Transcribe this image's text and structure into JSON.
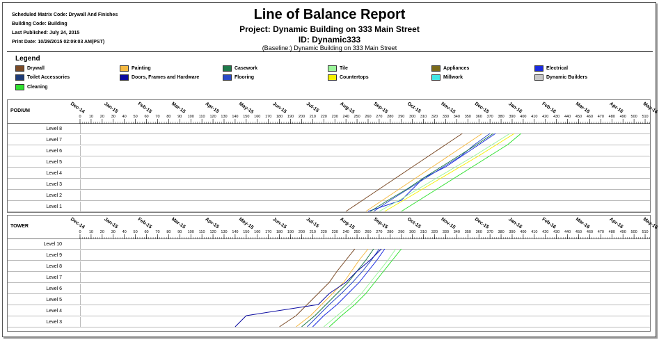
{
  "header": {
    "meta": [
      "Scheduled Matrix Code: Drywall And Finishes",
      "Building Code:  Building",
      "Last Published: July 24, 2015",
      "Print Date:  10/29/2015 02:09:03 AM(PST)"
    ],
    "title": "Line of Balance Report",
    "project": "Project: Dynamic Building on 333 Main Street",
    "id": "ID: Dynamic333",
    "baseline": "(Baseline:) Dynamic Building on 333 Main Street"
  },
  "legend": {
    "title": "Legend",
    "items": [
      {
        "label": "Drywall",
        "color": "#7a4a26"
      },
      {
        "label": "Painting",
        "color": "#f5b942"
      },
      {
        "label": "Casework",
        "color": "#1e7a4a"
      },
      {
        "label": "Tile",
        "color": "#9af59a"
      },
      {
        "label": "Appliances",
        "color": "#7a6a1a"
      },
      {
        "label": "Electrical",
        "color": "#1a2ae0"
      },
      {
        "label": "Toilet Accessories",
        "color": "#1e3c78"
      },
      {
        "label": "Doors, Frames and Hardware",
        "color": "#0a0aa0"
      },
      {
        "label": "Flooring",
        "color": "#2a4ac8"
      },
      {
        "label": "Countertops",
        "color": "#f5f000"
      },
      {
        "label": "Millwork",
        "color": "#40e6e6"
      },
      {
        "label": "Dynamic Builders",
        "color": "#c8c8c8"
      },
      {
        "label": "Cleaning",
        "color": "#30e030"
      }
    ]
  },
  "axis": {
    "months": [
      "Dec-14",
      "Jan-15",
      "Feb-15",
      "Mar-15",
      "Apr-15",
      "May-15",
      "Jun-15",
      "Jul-15",
      "Aug-15",
      "Sep-15",
      "Oct-15",
      "Nov-15",
      "Dec-15",
      "Jan-16",
      "Feb-16",
      "Mar-16",
      "Apr-16",
      "May-16"
    ],
    "day_ticks": [
      0,
      10,
      20,
      30,
      40,
      50,
      60,
      70,
      80,
      90,
      100,
      110,
      120,
      130,
      140,
      150,
      160,
      170,
      180,
      190,
      200,
      210,
      220,
      230,
      240,
      250,
      260,
      270,
      280,
      290,
      300,
      310,
      320,
      330,
      340,
      350,
      360,
      370,
      380,
      390,
      400,
      410,
      420,
      430,
      440,
      450,
      460,
      470,
      480,
      490,
      500,
      510
    ],
    "day_max": 515
  },
  "panels": [
    {
      "label": "PODIUM",
      "levels": [
        "Level 8",
        "Level 7",
        "Level 6",
        "Level 5",
        "Level 4",
        "Level 3",
        "Level 2",
        "Level 1"
      ]
    },
    {
      "label": "TOWER",
      "levels": [
        "Level 10",
        "Level 9",
        "Level 8",
        "Level 7",
        "Level 6",
        "Level 5",
        "Level 4",
        "Level 3"
      ]
    }
  ],
  "chart_data": [
    {
      "type": "line",
      "title": "PODIUM",
      "x_unit": "project day",
      "xlim": [
        0,
        515
      ],
      "categories": [
        "Level 1",
        "Level 2",
        "Level 3",
        "Level 4",
        "Level 5",
        "Level 6",
        "Level 7",
        "Level 8"
      ],
      "series": [
        {
          "name": "Drywall",
          "color": "#7a4a26",
          "points": [
            [
              240,
              1
            ],
            [
              255,
              2
            ],
            [
              270,
              3
            ],
            [
              285,
              4
            ],
            [
              300,
              5
            ],
            [
              315,
              6
            ],
            [
              330,
              7
            ],
            [
              345,
              8
            ]
          ]
        },
        {
          "name": "Painting",
          "color": "#f5b942",
          "points": [
            [
              258,
              1
            ],
            [
              273,
              2
            ],
            [
              288,
              3
            ],
            [
              303,
              4
            ],
            [
              318,
              5
            ],
            [
              333,
              6
            ],
            [
              348,
              7
            ],
            [
              363,
              8
            ]
          ]
        },
        {
          "name": "Electrical",
          "color": "#1a2ae0",
          "points": [
            [
              260,
              1
            ],
            [
              290,
              2
            ],
            [
              300,
              3
            ],
            [
              310,
              4
            ],
            [
              330,
              5
            ],
            [
              345,
              6
            ],
            [
              360,
              7
            ],
            [
              375,
              8
            ]
          ]
        },
        {
          "name": "Flooring",
          "color": "#2a4ac8",
          "points": [
            [
              265,
              1
            ],
            [
              280,
              2
            ],
            [
              296,
              3
            ],
            [
              312,
              4
            ],
            [
              328,
              5
            ],
            [
              344,
              6
            ],
            [
              356,
              7
            ],
            [
              370,
              8
            ]
          ]
        },
        {
          "name": "Tile",
          "color": "#9af59a",
          "points": [
            [
              270,
              1
            ],
            [
              288,
              2
            ],
            [
              305,
              3
            ],
            [
              322,
              4
            ],
            [
              339,
              5
            ],
            [
              356,
              6
            ],
            [
              372,
              7
            ],
            [
              388,
              8
            ]
          ]
        },
        {
          "name": "Casework",
          "color": "#1e7a4a",
          "points": [
            [
              262,
              1
            ],
            [
              278,
              2
            ],
            [
              295,
              3
            ],
            [
              310,
              4
            ],
            [
              326,
              5
            ],
            [
              342,
              6
            ],
            [
              358,
              7
            ],
            [
              373,
              8
            ]
          ]
        },
        {
          "name": "Countertops",
          "color": "#f5f000",
          "points": [
            [
              275,
              1
            ],
            [
              292,
              2
            ],
            [
              309,
              3
            ],
            [
              326,
              4
            ],
            [
              343,
              5
            ],
            [
              360,
              6
            ],
            [
              376,
              7
            ],
            [
              392,
              8
            ]
          ]
        },
        {
          "name": "Cleaning",
          "color": "#30e030",
          "points": [
            [
              290,
              1
            ],
            [
              306,
              2
            ],
            [
              322,
              3
            ],
            [
              338,
              4
            ],
            [
              354,
              5
            ],
            [
              370,
              6
            ],
            [
              386,
              7
            ],
            [
              398,
              8
            ]
          ]
        }
      ]
    },
    {
      "type": "line",
      "title": "TOWER",
      "x_unit": "project day",
      "xlim": [
        0,
        515
      ],
      "categories": [
        "Level 3",
        "Level 4",
        "Level 5",
        "Level 6",
        "Level 7",
        "Level 8",
        "Level 9",
        "Level 10"
      ],
      "series": [
        {
          "name": "Drywall",
          "color": "#7a4a26",
          "points": [
            [
              180,
              3
            ],
            [
              195,
              4
            ],
            [
              205,
              5
            ],
            [
              215,
              6
            ],
            [
              225,
              7
            ],
            [
              232,
              8
            ],
            [
              240,
              9
            ],
            [
              248,
              10
            ]
          ]
        },
        {
          "name": "Painting",
          "color": "#f5b942",
          "points": [
            [
              195,
              3
            ],
            [
              208,
              4
            ],
            [
              218,
              5
            ],
            [
              228,
              6
            ],
            [
              238,
              7
            ],
            [
              245,
              8
            ],
            [
              252,
              9
            ],
            [
              260,
              10
            ]
          ]
        },
        {
          "name": "Electrical",
          "color": "#1a2ae0",
          "points": [
            [
              210,
              3
            ],
            [
              220,
              4
            ],
            [
              232,
              5
            ],
            [
              242,
              6
            ],
            [
              252,
              7
            ],
            [
              260,
              8
            ],
            [
              268,
              9
            ],
            [
              275,
              10
            ]
          ]
        },
        {
          "name": "Flooring",
          "color": "#2a4ac8",
          "points": [
            [
              205,
              3
            ],
            [
              215,
              4
            ],
            [
              225,
              5
            ],
            [
              236,
              6
            ],
            [
              246,
              7
            ],
            [
              255,
              8
            ],
            [
              263,
              9
            ],
            [
              270,
              10
            ]
          ]
        },
        {
          "name": "Tile",
          "color": "#9af59a",
          "points": [
            [
              220,
              3
            ],
            [
              232,
              4
            ],
            [
              244,
              5
            ],
            [
              254,
              6
            ],
            [
              262,
              7
            ],
            [
              270,
              8
            ],
            [
              278,
              9
            ],
            [
              285,
              10
            ]
          ]
        },
        {
          "name": "Casework",
          "color": "#1e7a4a",
          "points": [
            [
              200,
              3
            ],
            [
              212,
              4
            ],
            [
              222,
              5
            ],
            [
              232,
              6
            ],
            [
              242,
              7
            ],
            [
              250,
              8
            ],
            [
              258,
              9
            ],
            [
              265,
              10
            ]
          ]
        },
        {
          "name": "Cleaning",
          "color": "#30e030",
          "points": [
            [
              225,
              3
            ],
            [
              236,
              4
            ],
            [
              248,
              5
            ],
            [
              258,
              6
            ],
            [
              266,
              7
            ],
            [
              274,
              8
            ],
            [
              282,
              9
            ],
            [
              290,
              10
            ]
          ]
        },
        {
          "name": "Doors, Frames and Hardware",
          "color": "#0a0aa0",
          "points": [
            [
              140,
              3
            ],
            [
              150,
              4
            ],
            [
              215,
              5
            ],
            [
              225,
              6
            ],
            [
              240,
              7
            ],
            [
              250,
              8
            ],
            [
              262,
              9
            ],
            [
              272,
              10
            ]
          ]
        }
      ]
    }
  ]
}
